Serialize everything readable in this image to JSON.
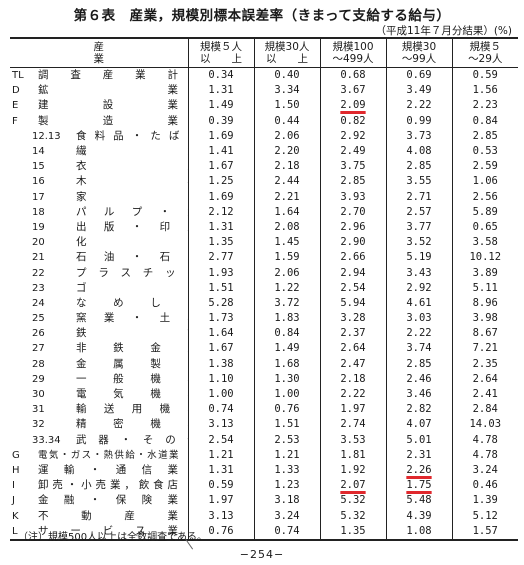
{
  "title": "第６表　産業，規模別標本誤差率（きまって支給する給与）",
  "note": "（平成11年７月分結果）(%)",
  "columns": [
    {
      "line1": "産　　　　　業",
      "line2": ""
    },
    {
      "line1": "規模５人",
      "line2": "以　　上"
    },
    {
      "line1": "規模30人",
      "line2": "以　　上"
    },
    {
      "line1": "規模100",
      "line2": "〜499人"
    },
    {
      "line1": "規模30",
      "line2": "〜99人"
    },
    {
      "line1": "規模５",
      "line2": "〜29人"
    }
  ],
  "rows": [
    {
      "code": "TL",
      "name": "調査産業計",
      "values": [
        "0.34",
        "0.40",
        "0.68",
        "0.69",
        "0.59"
      ]
    },
    {
      "code": "D",
      "name": "鉱業",
      "values": [
        "1.31",
        "3.34",
        "3.67",
        "3.49",
        "1.56"
      ]
    },
    {
      "code": "E",
      "name": "建設業",
      "values": [
        "1.49",
        "1.50",
        "2.09",
        "2.22",
        "2.23"
      ]
    },
    {
      "code": "F",
      "name": "製造業",
      "values": [
        "0.39",
        "0.44",
        "0.82",
        "0.99",
        "0.84"
      ]
    },
    {
      "code": "12.13",
      "name": "食料品・たばこ",
      "values": [
        "1.69",
        "2.06",
        "2.92",
        "3.73",
        "2.85"
      ]
    },
    {
      "code": "14",
      "name": "繊維",
      "values": [
        "1.41",
        "2.20",
        "2.49",
        "4.08",
        "0.53"
      ]
    },
    {
      "code": "15",
      "name": "衣服",
      "values": [
        "1.67",
        "2.18",
        "3.75",
        "2.85",
        "2.59"
      ]
    },
    {
      "code": "16",
      "name": "木材",
      "values": [
        "1.25",
        "2.44",
        "2.85",
        "3.55",
        "1.06"
      ]
    },
    {
      "code": "17",
      "name": "家具",
      "values": [
        "1.69",
        "2.21",
        "3.93",
        "2.71",
        "2.56"
      ]
    },
    {
      "code": "18",
      "name": "パルプ・紙",
      "values": [
        "2.12",
        "1.64",
        "2.70",
        "2.57",
        "5.89"
      ]
    },
    {
      "code": "19",
      "name": "出版・印刷",
      "values": [
        "1.31",
        "2.08",
        "2.96",
        "3.77",
        "0.65"
      ]
    },
    {
      "code": "20",
      "name": "化学",
      "values": [
        "1.35",
        "1.45",
        "2.90",
        "3.52",
        "3.58"
      ]
    },
    {
      "code": "21",
      "name": "石油・石炭",
      "values": [
        "2.77",
        "1.59",
        "2.66",
        "5.19",
        "10.12"
      ]
    },
    {
      "code": "22",
      "name": "プラスチック",
      "values": [
        "1.93",
        "2.06",
        "2.94",
        "3.43",
        "3.89"
      ]
    },
    {
      "code": "23",
      "name": "ゴム",
      "values": [
        "1.51",
        "1.22",
        "2.54",
        "2.92",
        "5.11"
      ]
    },
    {
      "code": "24",
      "name": "なめし革",
      "values": [
        "5.28",
        "3.72",
        "5.94",
        "4.61",
        "8.96"
      ]
    },
    {
      "code": "25",
      "name": "窯業・土石",
      "values": [
        "1.73",
        "1.83",
        "3.28",
        "3.03",
        "3.98"
      ]
    },
    {
      "code": "26",
      "name": "鉄鋼",
      "values": [
        "1.64",
        "0.84",
        "2.37",
        "2.22",
        "8.67"
      ]
    },
    {
      "code": "27",
      "name": "非鉄金属",
      "values": [
        "1.67",
        "1.49",
        "2.64",
        "3.74",
        "7.21"
      ]
    },
    {
      "code": "28",
      "name": "金属製品",
      "values": [
        "1.38",
        "1.68",
        "2.47",
        "2.85",
        "2.35"
      ]
    },
    {
      "code": "29",
      "name": "一般機械",
      "values": [
        "1.10",
        "1.30",
        "2.18",
        "2.46",
        "2.64"
      ]
    },
    {
      "code": "30",
      "name": "電気機器",
      "values": [
        "1.00",
        "1.00",
        "2.22",
        "3.46",
        "2.41"
      ]
    },
    {
      "code": "31",
      "name": "輸送用機器",
      "values": [
        "0.74",
        "0.76",
        "1.97",
        "2.82",
        "2.84"
      ]
    },
    {
      "code": "32",
      "name": "精密機器",
      "values": [
        "3.13",
        "1.51",
        "2.74",
        "4.07",
        "14.03"
      ]
    },
    {
      "code": "33.34",
      "name": "武器・その他",
      "values": [
        "2.54",
        "2.53",
        "3.53",
        "5.01",
        "4.78"
      ]
    },
    {
      "code": "G",
      "name": "電気・ガス・熱供給・水道業",
      "values": [
        "1.21",
        "1.21",
        "1.81",
        "2.31",
        "4.78"
      ]
    },
    {
      "code": "H",
      "name": "運輸・通信業",
      "values": [
        "1.31",
        "1.33",
        "1.92",
        "2.26",
        "3.24"
      ]
    },
    {
      "code": "I",
      "name": "卸売・小売業，飲食店",
      "values": [
        "0.59",
        "1.23",
        "2.07",
        "1.75",
        "0.46"
      ]
    },
    {
      "code": "J",
      "name": "金融・保険業",
      "values": [
        "1.97",
        "3.18",
        "5.32",
        "5.48",
        "1.39"
      ]
    },
    {
      "code": "K",
      "name": "不動産業",
      "values": [
        "3.13",
        "3.24",
        "5.32",
        "4.39",
        "5.12"
      ]
    },
    {
      "code": "L",
      "name": "サービス業",
      "values": [
        "0.76",
        "0.74",
        "1.35",
        "1.08",
        "1.57"
      ]
    }
  ],
  "highlights": [
    {
      "row": 2,
      "col": 2,
      "color": "#e0282d"
    },
    {
      "row": 26,
      "col": 3,
      "color": "#e0282d"
    },
    {
      "row": 27,
      "col": 2,
      "color": "#e0282d"
    },
    {
      "row": 27,
      "col": 3,
      "color": "#e0282d"
    }
  ],
  "footnote": "（注）規模500人以上は全数調査である。",
  "page_number": "−254−"
}
